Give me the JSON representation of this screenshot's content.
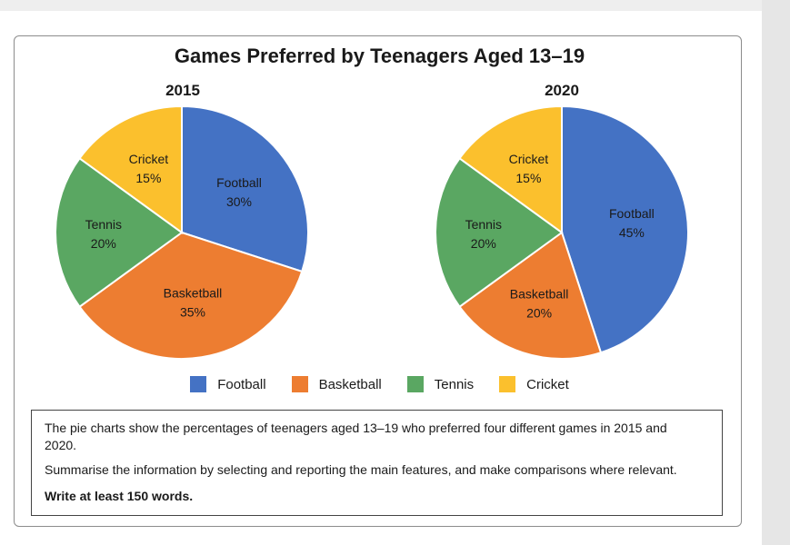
{
  "chart_data": {
    "type": "pie",
    "title": "Games Preferred by Teenagers Aged 13–19",
    "pies": [
      {
        "year": "2015",
        "slices": [
          {
            "name": "Football",
            "value": 30,
            "label": "30%"
          },
          {
            "name": "Basketball",
            "value": 35,
            "label": "35%"
          },
          {
            "name": "Tennis",
            "value": 20,
            "label": "20%"
          },
          {
            "name": "Cricket",
            "value": 15,
            "label": "15%"
          }
        ]
      },
      {
        "year": "2020",
        "slices": [
          {
            "name": "Football",
            "value": 45,
            "label": "45%"
          },
          {
            "name": "Basketball",
            "value": 20,
            "label": "20%"
          },
          {
            "name": "Tennis",
            "value": 20,
            "label": "20%"
          },
          {
            "name": "Cricket",
            "value": 15,
            "label": "15%"
          }
        ]
      }
    ],
    "legend": {
      "position": "bottom",
      "items": [
        {
          "name": "Football",
          "color": "#4472c4"
        },
        {
          "name": "Basketball",
          "color": "#ed7d31"
        },
        {
          "name": "Tennis",
          "color": "#5aa762"
        },
        {
          "name": "Cricket",
          "color": "#fbc02d"
        }
      ]
    }
  },
  "task": {
    "line1": "The pie charts show the percentages of teenagers aged 13–19 who preferred four different games in 2015 and 2020.",
    "line2": "Summarise the information by selecting and reporting the main features, and make comparisons where relevant.",
    "line3": "Write at least 150 words."
  }
}
